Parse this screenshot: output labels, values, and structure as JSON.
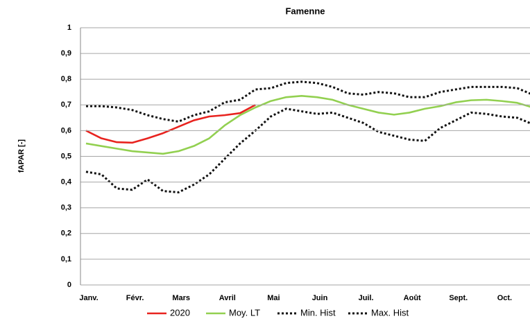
{
  "chart_data": {
    "type": "line",
    "title": "Famenne",
    "y_label": "fAPAR [-]",
    "categories": [
      "Janv.",
      null,
      null,
      "Févr.",
      null,
      null,
      "Mars",
      null,
      null,
      "Avril",
      null,
      null,
      "Mai",
      null,
      null,
      "Juin",
      null,
      null,
      "Juil.",
      null,
      null,
      "Août",
      null,
      null,
      "Sept.",
      null,
      null,
      "Oct.",
      null,
      null
    ],
    "series": [
      {
        "name": "2020",
        "color": "#e8231f",
        "line_style": "solid",
        "values": [
          0.6,
          0.57,
          0.555,
          0.553,
          0.57,
          0.59,
          0.615,
          0.64,
          0.655,
          0.66,
          0.668,
          0.7,
          null,
          null,
          null,
          null,
          null,
          null,
          null,
          null,
          null,
          null,
          null,
          null,
          null,
          null,
          null,
          null,
          null,
          null
        ]
      },
      {
        "name": "Moy. LT",
        "color": "#92d050",
        "line_style": "solid",
        "values": [
          0.55,
          0.54,
          0.53,
          0.52,
          0.515,
          0.51,
          0.52,
          0.54,
          0.57,
          0.62,
          0.66,
          0.69,
          0.715,
          0.73,
          0.735,
          0.73,
          0.72,
          0.7,
          0.685,
          0.67,
          0.662,
          0.67,
          0.685,
          0.695,
          0.71,
          0.718,
          0.72,
          0.715,
          0.708,
          0.69
        ]
      },
      {
        "name": "Min. Hist",
        "color": "#111111",
        "line_style": "dotted",
        "values": [
          0.44,
          0.43,
          0.375,
          0.37,
          0.41,
          0.365,
          0.36,
          0.39,
          0.43,
          0.49,
          0.55,
          0.6,
          0.655,
          0.685,
          0.675,
          0.665,
          0.67,
          0.65,
          0.63,
          0.595,
          0.58,
          0.565,
          0.56,
          0.61,
          0.64,
          0.67,
          0.665,
          0.655,
          0.65,
          0.625
        ]
      },
      {
        "name": "Max. Hist",
        "color": "#111111",
        "line_style": "dotted",
        "values": [
          0.695,
          0.695,
          0.69,
          0.68,
          0.66,
          0.645,
          0.635,
          0.66,
          0.675,
          0.71,
          0.72,
          0.76,
          0.765,
          0.785,
          0.79,
          0.785,
          0.77,
          0.745,
          0.74,
          0.75,
          0.745,
          0.73,
          0.73,
          0.75,
          0.76,
          0.77,
          0.77,
          0.77,
          0.765,
          0.74
        ]
      }
    ],
    "ylim": [
      0,
      1
    ],
    "yticks": [
      0,
      {
        "value": 0.1,
        "label": "0,1"
      },
      {
        "value": 0.2,
        "label": "0,2"
      },
      {
        "value": 0.3,
        "label": "0,3"
      },
      {
        "value": 0.4,
        "label": "0,4"
      },
      {
        "value": 0.5,
        "label": "0,5"
      },
      {
        "value": 0.6,
        "label": "0,6"
      },
      {
        "value": 0.7,
        "label": "0,7"
      },
      {
        "value": 0.8,
        "label": "0,8"
      },
      {
        "value": 0.9,
        "label": "0,9"
      },
      1
    ],
    "grid": true,
    "legend": "bottom"
  }
}
